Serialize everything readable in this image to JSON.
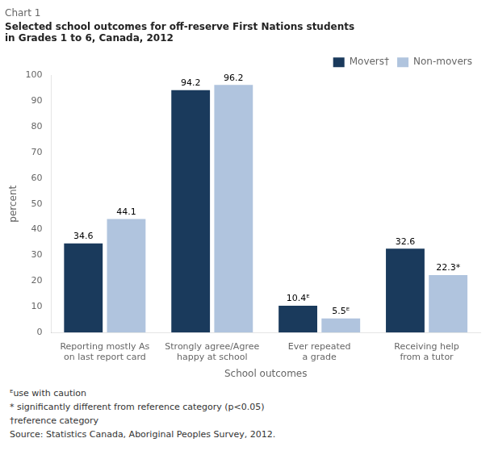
{
  "chart_data": {
    "type": "bar",
    "title": "Chart 1",
    "subtitle": "Selected school outcomes for off-reserve First Nations students\nin Grades 1 to 6, Canada, 2012",
    "categories": [
      "Reporting mostly As\non last report card",
      "Strongly agree/Agree\nhappy at school",
      "Ever repeated\na grade",
      "Receiving help\nfrom a tutor"
    ],
    "series": [
      {
        "name": "Movers†",
        "color": "#1a3a5c",
        "values": [
          34.6,
          94.2,
          10.4,
          32.6
        ],
        "value_labels": [
          "34.6",
          "94.2",
          "10.4ᴱ",
          "32.6"
        ]
      },
      {
        "name": "Non-movers",
        "color": "#b0c4de",
        "values": [
          44.1,
          96.2,
          5.5,
          22.3
        ],
        "value_labels": [
          "44.1",
          "96.2",
          "5.5ᴱ",
          "22.3*"
        ]
      }
    ],
    "xlabel": "School outcomes",
    "ylabel": "percent",
    "ylim": [
      0,
      100
    ],
    "yticks": [
      0,
      10,
      20,
      30,
      40,
      50,
      60,
      70,
      80,
      90,
      100
    ],
    "grid": false,
    "legend": "upper right",
    "data_labels": true,
    "annotations": [
      "ᴱuse with caution",
      "* significantly different from reference category (p<0.05)",
      "†reference category",
      "Source: Statistics Canada, Aboriginal Peoples Survey, 2012."
    ]
  }
}
